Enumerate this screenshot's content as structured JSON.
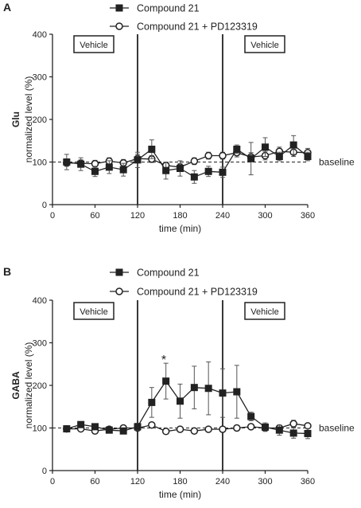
{
  "chart_data": [
    {
      "panel_label": "A",
      "type": "line",
      "ylabel_bold": "Glu",
      "ylabel": "normalized level (%)",
      "xlabel": "time (min)",
      "xlim": [
        0,
        360
      ],
      "ylim": [
        0,
        400
      ],
      "xticks": [
        "0",
        "60",
        "120",
        "180",
        "240",
        "300",
        "360"
      ],
      "yticks": [
        "0",
        "100",
        "200",
        "300",
        "400"
      ],
      "grid": false,
      "legend_position": "top-center",
      "vehicle_label": "Vehicle",
      "vehicle_lines_x": [
        120,
        240
      ],
      "baseline_label": "baseline",
      "baseline_value": 100,
      "series": [
        {
          "name": "Compound 21",
          "marker": "square-filled",
          "x": [
            20,
            40,
            60,
            80,
            100,
            120,
            140,
            160,
            180,
            200,
            220,
            240,
            260,
            280,
            300,
            320,
            340,
            360
          ],
          "values": [
            100,
            95,
            78,
            88,
            82,
            105,
            130,
            80,
            85,
            65,
            78,
            76,
            130,
            108,
            135,
            113,
            140,
            113
          ],
          "errors": [
            18,
            15,
            12,
            15,
            15,
            18,
            22,
            20,
            18,
            15,
            12,
            12,
            10,
            38,
            22,
            10,
            22,
            10
          ]
        },
        {
          "name": "Compound 21 + PD123319",
          "marker": "circle-open",
          "x": [
            20,
            40,
            60,
            80,
            100,
            120,
            140,
            160,
            180,
            200,
            220,
            240,
            260,
            280,
            300,
            320,
            340,
            360
          ],
          "values": [
            98,
            97,
            96,
            102,
            98,
            108,
            107,
            92,
            88,
            102,
            115,
            115,
            122,
            112,
            115,
            125,
            123,
            122
          ],
          "errors": [
            8,
            8,
            8,
            8,
            8,
            10,
            8,
            8,
            8,
            8,
            8,
            8,
            10,
            10,
            10,
            10,
            10,
            10
          ]
        }
      ]
    },
    {
      "panel_label": "B",
      "type": "line",
      "ylabel_bold": "GABA",
      "ylabel": "normalized level (%)",
      "xlabel": "time (min)",
      "xlim": [
        0,
        360
      ],
      "ylim": [
        0,
        400
      ],
      "xticks": [
        "0",
        "60",
        "120",
        "180",
        "240",
        "300",
        "360"
      ],
      "yticks": [
        "0",
        "100",
        "200",
        "300",
        "400"
      ],
      "grid": false,
      "legend_position": "top-center",
      "vehicle_label": "Vehicle",
      "vehicle_lines_x": [
        120,
        240
      ],
      "baseline_label": "baseline",
      "baseline_value": 100,
      "significance_marker": {
        "text": "*",
        "x": 157,
        "y": 262
      },
      "series": [
        {
          "name": "Compound 21",
          "marker": "square-filled",
          "x": [
            20,
            40,
            60,
            80,
            100,
            120,
            140,
            160,
            180,
            200,
            220,
            240,
            260,
            280,
            300,
            320,
            340,
            360
          ],
          "values": [
            98,
            108,
            103,
            95,
            93,
            103,
            160,
            210,
            163,
            195,
            193,
            182,
            185,
            127,
            102,
            95,
            88,
            87
          ],
          "errors": [
            5,
            5,
            5,
            5,
            5,
            8,
            35,
            42,
            40,
            50,
            62,
            57,
            62,
            10,
            10,
            12,
            12,
            12
          ]
        },
        {
          "name": "Compound 21 + PD123319",
          "marker": "circle-open",
          "x": [
            20,
            40,
            60,
            80,
            100,
            120,
            140,
            160,
            180,
            200,
            220,
            240,
            260,
            280,
            300,
            320,
            340,
            360
          ],
          "values": [
            98,
            98,
            93,
            97,
            100,
            100,
            107,
            92,
            97,
            93,
            97,
            97,
            100,
            103,
            100,
            100,
            110,
            105
          ],
          "errors": [
            5,
            5,
            5,
            5,
            5,
            5,
            5,
            5,
            5,
            5,
            5,
            5,
            5,
            5,
            5,
            5,
            8,
            5
          ]
        }
      ]
    }
  ]
}
